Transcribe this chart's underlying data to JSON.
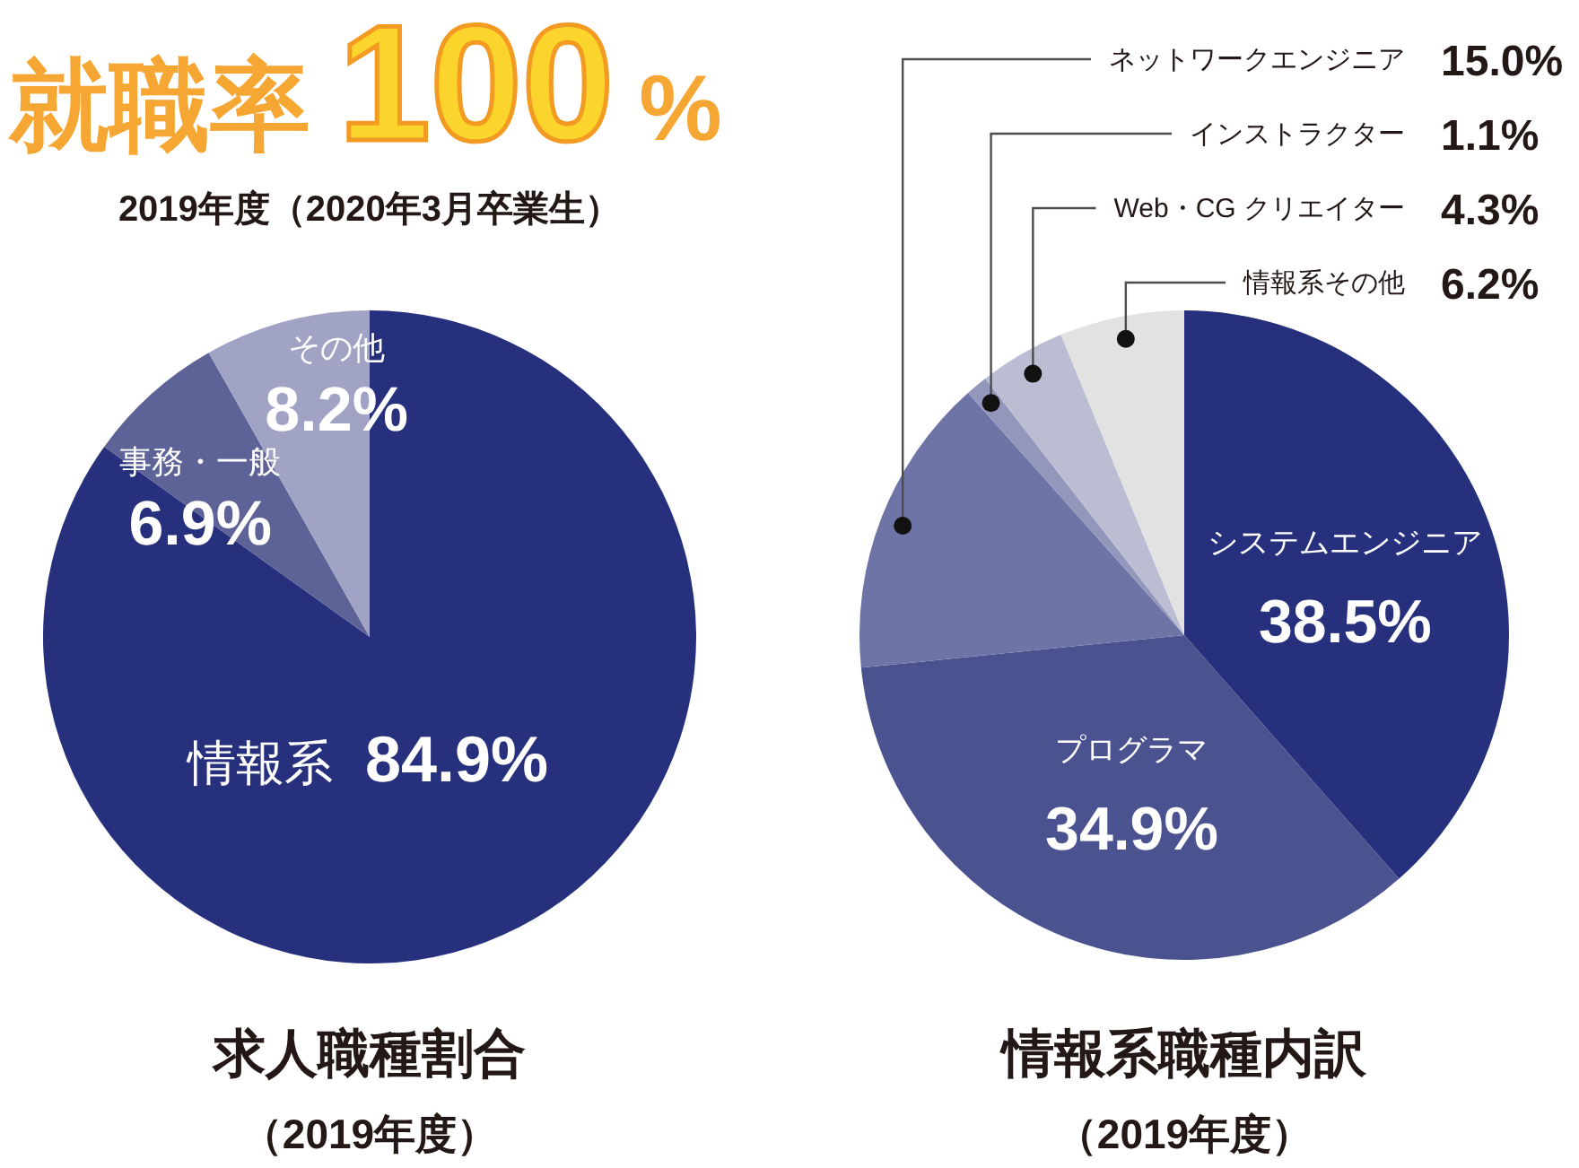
{
  "chart_data": [
    {
      "type": "other",
      "title": "就職率 100%",
      "subtitle": "2019年度（2020年3月卒業生）"
    },
    {
      "type": "pie",
      "title": "求人職種割合",
      "subtitle": "（2019年度）",
      "categories": [
        "情報系",
        "事務・一般",
        "その他"
      ],
      "values": [
        84.9,
        6.9,
        8.2
      ],
      "colors": [
        "#26307c",
        "#5e6397",
        "#a0a3c3"
      ],
      "value_labels": [
        "84.9%",
        "6.9%",
        "8.2%"
      ]
    },
    {
      "type": "pie",
      "title": "情報系職種内訳",
      "subtitle": "（2019年度）",
      "categories": [
        "システムエンジニア",
        "プログラマ",
        "ネットワークエンジニア",
        "インストラクター",
        "Web・CG クリエイター",
        "情報系その他"
      ],
      "values": [
        38.5,
        34.9,
        15.0,
        1.1,
        4.3,
        6.2
      ],
      "colors": [
        "#26307c",
        "#4a5290",
        "#6e74a5",
        "#9397bb",
        "#bbbdd2",
        "#e2e2e2"
      ],
      "value_labels": [
        "38.5%",
        "34.9%",
        "15.0%",
        "1.1%",
        "4.3%",
        "6.2%"
      ]
    }
  ]
}
